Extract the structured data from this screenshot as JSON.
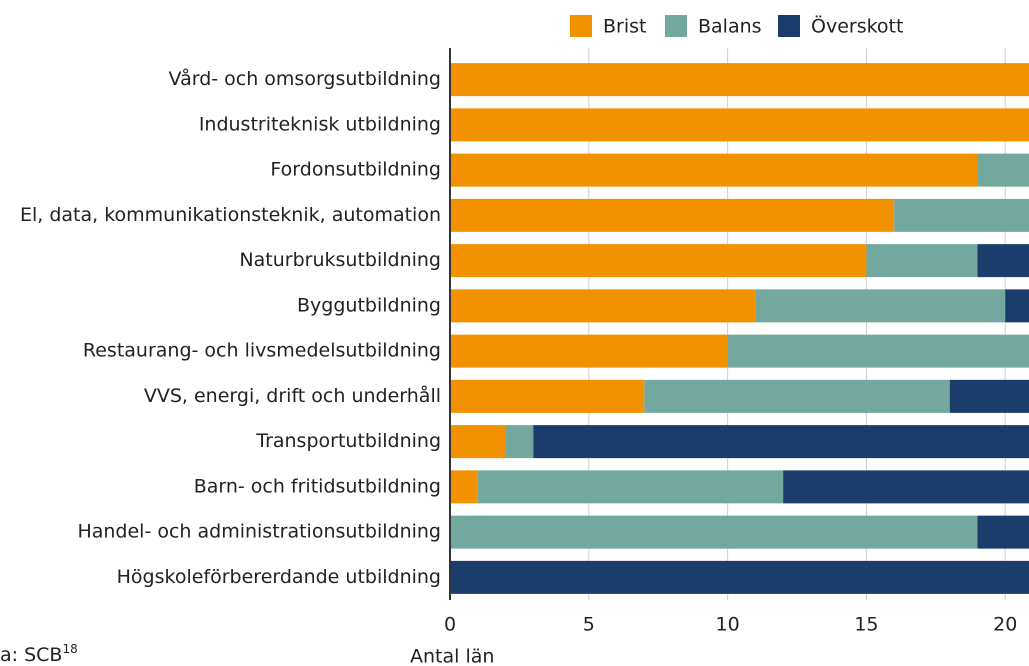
{
  "chart_data": {
    "type": "stacked_barh",
    "categories": [
      "Vård- och omsorgsutbildning",
      "Industriteknisk utbildning",
      "Fordonsutbildning",
      "El, data, kommunikationsteknik, automation",
      "Naturbruksutbildning",
      "Byggutbildning",
      "Restaurang- och livsmedelsutbildning",
      "VVS, energi, drift och underhåll",
      "Transportutbildning",
      "Barn- och fritidsutbildning",
      "Handel- och administrationsutbildning",
      "Högskoleförbererdande utbildning"
    ],
    "series": [
      {
        "name": "Brist",
        "color": "#f39200",
        "values": [
          21,
          21,
          19,
          16,
          15,
          11,
          10,
          7,
          2,
          1,
          0,
          0
        ]
      },
      {
        "name": "Balans",
        "color": "#72a89e",
        "values": [
          0,
          0,
          2,
          5,
          4,
          9,
          11,
          11,
          1,
          11,
          19,
          0
        ]
      },
      {
        "name": "Överskott",
        "color": "#1b3d6b",
        "values": [
          0,
          0,
          0,
          0,
          2,
          1,
          0,
          3,
          18,
          9,
          2,
          21
        ]
      }
    ],
    "xlabel": "Antal län",
    "xlim": [
      0,
      21
    ],
    "xticks": [
      0,
      5,
      10,
      15,
      20
    ],
    "grid": true,
    "legend": "top",
    "source": "a: SCB",
    "source_note": "18"
  }
}
